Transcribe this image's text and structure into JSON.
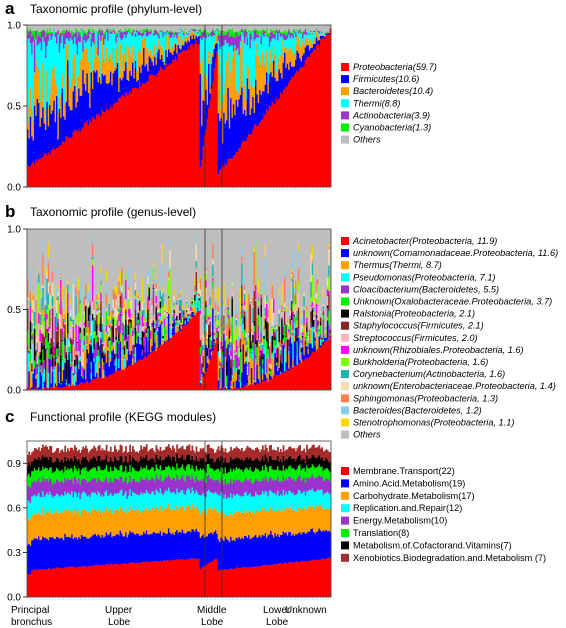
{
  "chart_data": [
    {
      "type": "bar",
      "stacked": true,
      "panel_letter": "a",
      "title": "Taxonomic profile (phylum-level)",
      "xlabel": "",
      "ylabel": "",
      "ylim": [
        0,
        1
      ],
      "yticks": [
        "0.0",
        "0.5",
        "1.0"
      ],
      "legend_position": "right",
      "italic_legend": true,
      "series": [
        {
          "name": "Proteobacteria(59.7)",
          "color": "#ff0000"
        },
        {
          "name": "Firmicutes(10.6)",
          "color": "#0000ff"
        },
        {
          "name": "Bacteroidetes(10.4)",
          "color": "#ff9f00"
        },
        {
          "name": "Thermi(8.8)",
          "color": "#00ffff"
        },
        {
          "name": "Actinobacteria(3.9)",
          "color": "#9a32cd"
        },
        {
          "name": "Cyanobacteria(1.3)",
          "color": "#00ee00"
        },
        {
          "name": "Others",
          "color": "#bebebe"
        }
      ]
    },
    {
      "type": "bar",
      "stacked": true,
      "panel_letter": "b",
      "title": "Taxonomic profile (genus-level)",
      "xlabel": "",
      "ylabel": "",
      "ylim": [
        0,
        1
      ],
      "yticks": [
        "0.0",
        "0.5",
        "1.0"
      ],
      "legend_position": "right",
      "italic_legend": true,
      "series": [
        {
          "name": "Acinetobacter(Proteobacteria, 11.9)",
          "color": "#ff0000"
        },
        {
          "name": "unknown(Comamonadaceae.Proteobacteria, 11.6)",
          "color": "#0000ff"
        },
        {
          "name": "Thermus(Thermi, 8.7)",
          "color": "#ff9f00"
        },
        {
          "name": "Pseudomonas(Proteobacteria, 7.1)",
          "color": "#00ffff"
        },
        {
          "name": "Cloacibacterium(Bacteroidetes, 5.5)",
          "color": "#9a32cd"
        },
        {
          "name": "Unknown(Oxalobacteraceae.Proteobacteria, 3.7)",
          "color": "#00ee00"
        },
        {
          "name": "Ralstonia(Proteobacteria, 2.1)",
          "color": "#000000"
        },
        {
          "name": "Staphylococcus(Firmicutes, 2.1)",
          "color": "#8b2323"
        },
        {
          "name": "Streptococcus(Firmicutes, 2.0)",
          "color": "#ffb6c1"
        },
        {
          "name": "unknown(Rhizobiales.Proteobacteria, 1.6)",
          "color": "#ff00ff"
        },
        {
          "name": "Burkholderia(Proteobacteria, 1.6)",
          "color": "#7fff00"
        },
        {
          "name": "Corynebacterium(Actinobacteria, 1.6)",
          "color": "#20b2aa"
        },
        {
          "name": "unknown(Enterobacteriaceae.Proteobacteria, 1.4)",
          "color": "#f5deb3"
        },
        {
          "name": "Sphingomonas(Proteobacteria, 1.3)",
          "color": "#ff7f50"
        },
        {
          "name": "Bacteroides(Bacteroidetes, 1.2)",
          "color": "#87ceeb"
        },
        {
          "name": "Stenotrophomonas(Proteobacteria, 1.1)",
          "color": "#ffd700"
        },
        {
          "name": "Others",
          "color": "#bebebe"
        }
      ]
    },
    {
      "type": "bar",
      "stacked": true,
      "panel_letter": "c",
      "title": "Functional profile (KEGG modules)",
      "xlabel": "",
      "ylabel": "",
      "ylim": [
        0,
        1.0
      ],
      "yticks": [
        "0.0",
        "0.3",
        "0.6",
        "0.9"
      ],
      "legend_position": "right",
      "italic_legend": false,
      "x_regions": [
        "Principal bronchus",
        "Upper Lobe",
        "Middle Lobe",
        "Lower Lobe",
        "Unknown"
      ],
      "series": [
        {
          "name": "Membrane.Transport(22)",
          "color": "#ff0000"
        },
        {
          "name": "Amino.Acid.Metabolism(19)",
          "color": "#0000ff"
        },
        {
          "name": "Carbohydrate.Metabolism(17)",
          "color": "#ff9f00"
        },
        {
          "name": "Replication.and.Repair(12)",
          "color": "#00ffff"
        },
        {
          "name": "Energy.Metabolism(10)",
          "color": "#9a32cd"
        },
        {
          "name": "Translation(8)",
          "color": "#00ee00"
        },
        {
          "name": "Metabolism.of.Cofactorand.Vitamins(7)",
          "color": "#000000"
        },
        {
          "name": "Xenobiotics.Biodegradation.and.Metabolism (7)",
          "color": "#a52a2a"
        }
      ]
    }
  ],
  "region_labels": [
    {
      "line1": "Principal",
      "line2": "bronchus"
    },
    {
      "line1": "Upper",
      "line2": "Lobe"
    },
    {
      "line1": "Middle",
      "line2": "Lobe"
    },
    {
      "line1": "Lower",
      "line2": "Lobe"
    },
    {
      "line1": "Unknown",
      "line2": ""
    }
  ]
}
